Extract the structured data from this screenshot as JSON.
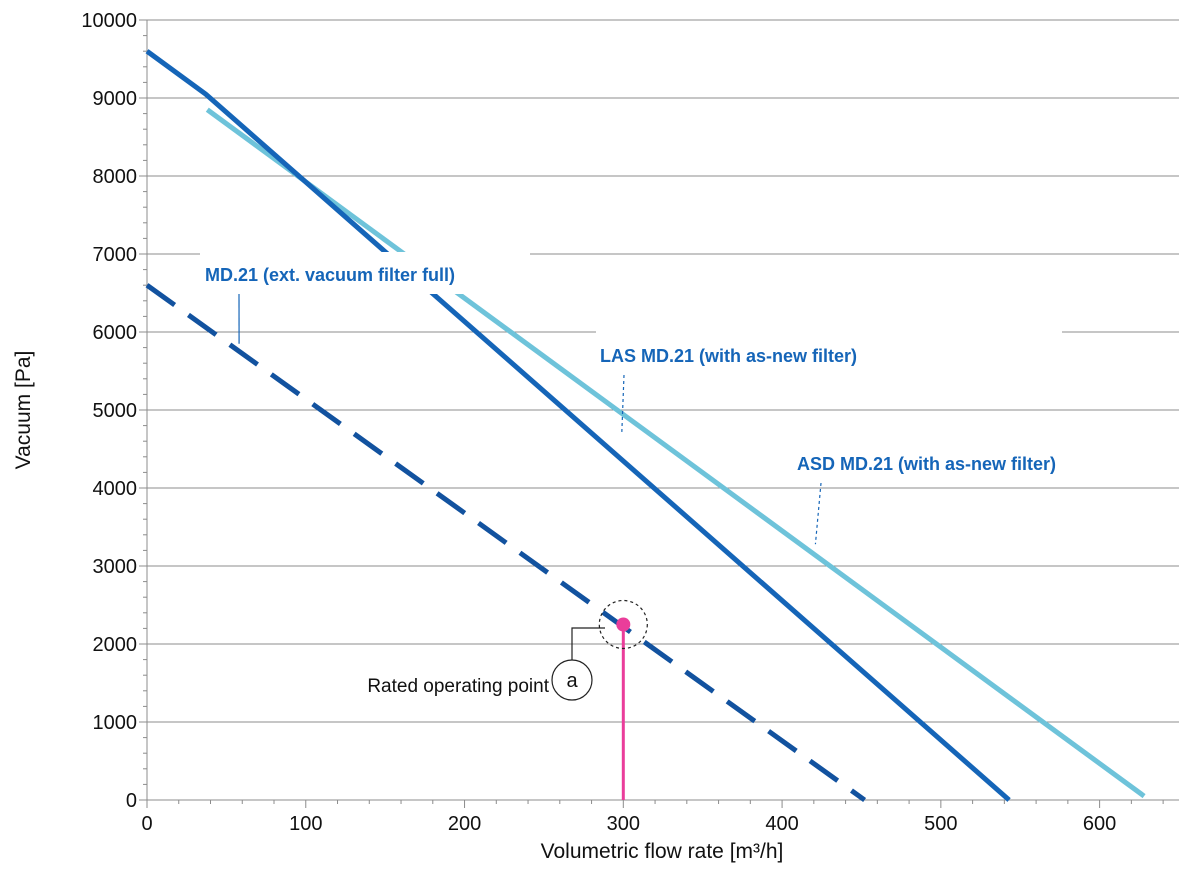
{
  "chart_data": {
    "type": "line",
    "xlabel": "Volumetric flow rate [m³/h]",
    "ylabel": "Vacuum [Pa]",
    "xlim": [
      0,
      650
    ],
    "ylim": [
      0,
      10000
    ],
    "x_ticks": [
      "0",
      "100",
      "200",
      "300",
      "400",
      "500",
      "600"
    ],
    "y_ticks": [
      "0",
      "1000",
      "2000",
      "3000",
      "4000",
      "5000",
      "6000",
      "7000",
      "8000",
      "9000",
      "10000"
    ],
    "grid": "horizontal",
    "series": [
      {
        "name": "MD.21 (ext. vacuum filter full)",
        "style": "dashed",
        "color": "#12529f",
        "points": [
          [
            0,
            6600
          ],
          [
            452,
            0
          ]
        ],
        "label_callout_at": [
          58,
          5850
        ]
      },
      {
        "name": "LAS MD.21 (with as-new filter)",
        "style": "solid",
        "color": "#1565b8",
        "points": [
          [
            0,
            9600
          ],
          [
            37,
            9050
          ],
          [
            543,
            0
          ]
        ],
        "label_callout_at": [
          299,
          4680
        ]
      },
      {
        "name": "ASD MD.21 (with as-new filter)",
        "style": "solid",
        "color": "#6ec3da",
        "points": [
          [
            38,
            8850
          ],
          [
            628,
            50
          ]
        ],
        "label_callout_at": [
          421,
          3280
        ]
      }
    ],
    "annotations": [
      {
        "label": "Rated operating point",
        "marker": "a",
        "x": 300,
        "y": 2250,
        "color": "#ea3d9a"
      }
    ]
  }
}
